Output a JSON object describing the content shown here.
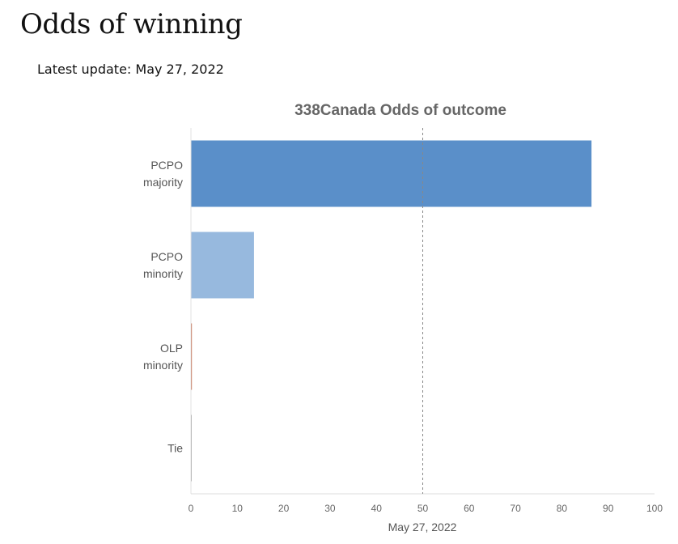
{
  "page": {
    "title": "Odds of winning",
    "update_text": "Latest update: May 27, 2022"
  },
  "chart_data": {
    "type": "bar",
    "orientation": "horizontal",
    "title": "338Canada Odds of outcome",
    "xlabel": "May 27, 2022",
    "ylabel": "",
    "xlim": [
      0,
      100
    ],
    "xticks": [
      0,
      10,
      20,
      30,
      40,
      50,
      60,
      70,
      80,
      90,
      100
    ],
    "reference_line": 50,
    "grid": false,
    "categories": [
      [
        "PCPO",
        "majority"
      ],
      [
        "PCPO",
        "minority"
      ],
      [
        "OLP",
        "minority"
      ],
      [
        "Tie"
      ]
    ],
    "values": [
      86.4,
      13.6,
      0.2,
      0.1
    ],
    "colors": [
      "#5a8fc9",
      "#97b9de",
      "#c0522e",
      "#999999"
    ]
  }
}
